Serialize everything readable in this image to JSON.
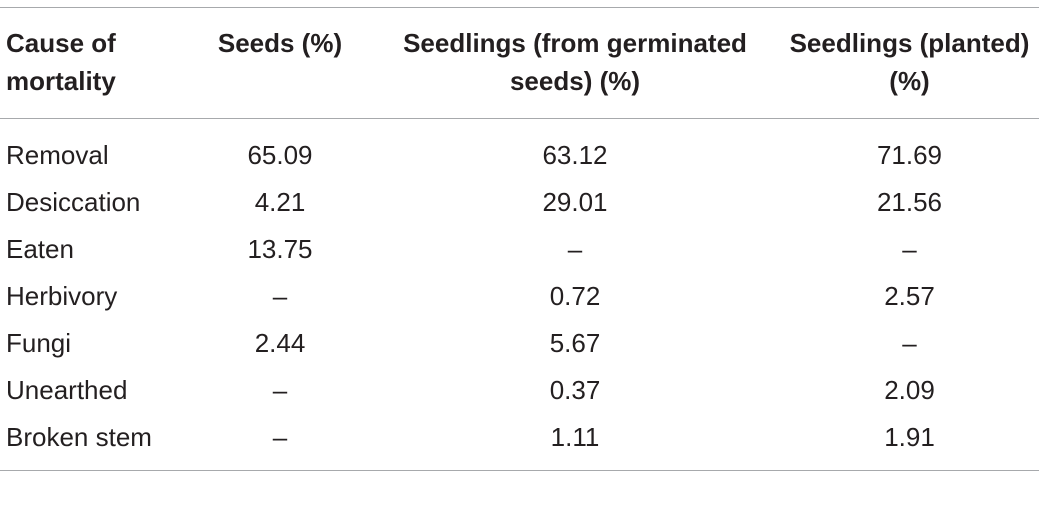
{
  "table": {
    "headers": [
      "Cause of mortality",
      "Seeds (%)",
      "Seedlings (from germinated seeds) (%)",
      "Seedlings (planted) (%)"
    ],
    "rows": [
      [
        "Removal",
        "65.09",
        "63.12",
        "71.69"
      ],
      [
        "Desiccation",
        "4.21",
        "29.01",
        "21.56"
      ],
      [
        "Eaten",
        "13.75",
        "–",
        "–"
      ],
      [
        "Herbivory",
        "–",
        "0.72",
        "2.57"
      ],
      [
        "Fungi",
        "2.44",
        "5.67",
        "–"
      ],
      [
        "Unearthed",
        "–",
        "0.37",
        "2.09"
      ],
      [
        "Broken stem",
        "–",
        "1.11",
        "1.91"
      ]
    ]
  }
}
